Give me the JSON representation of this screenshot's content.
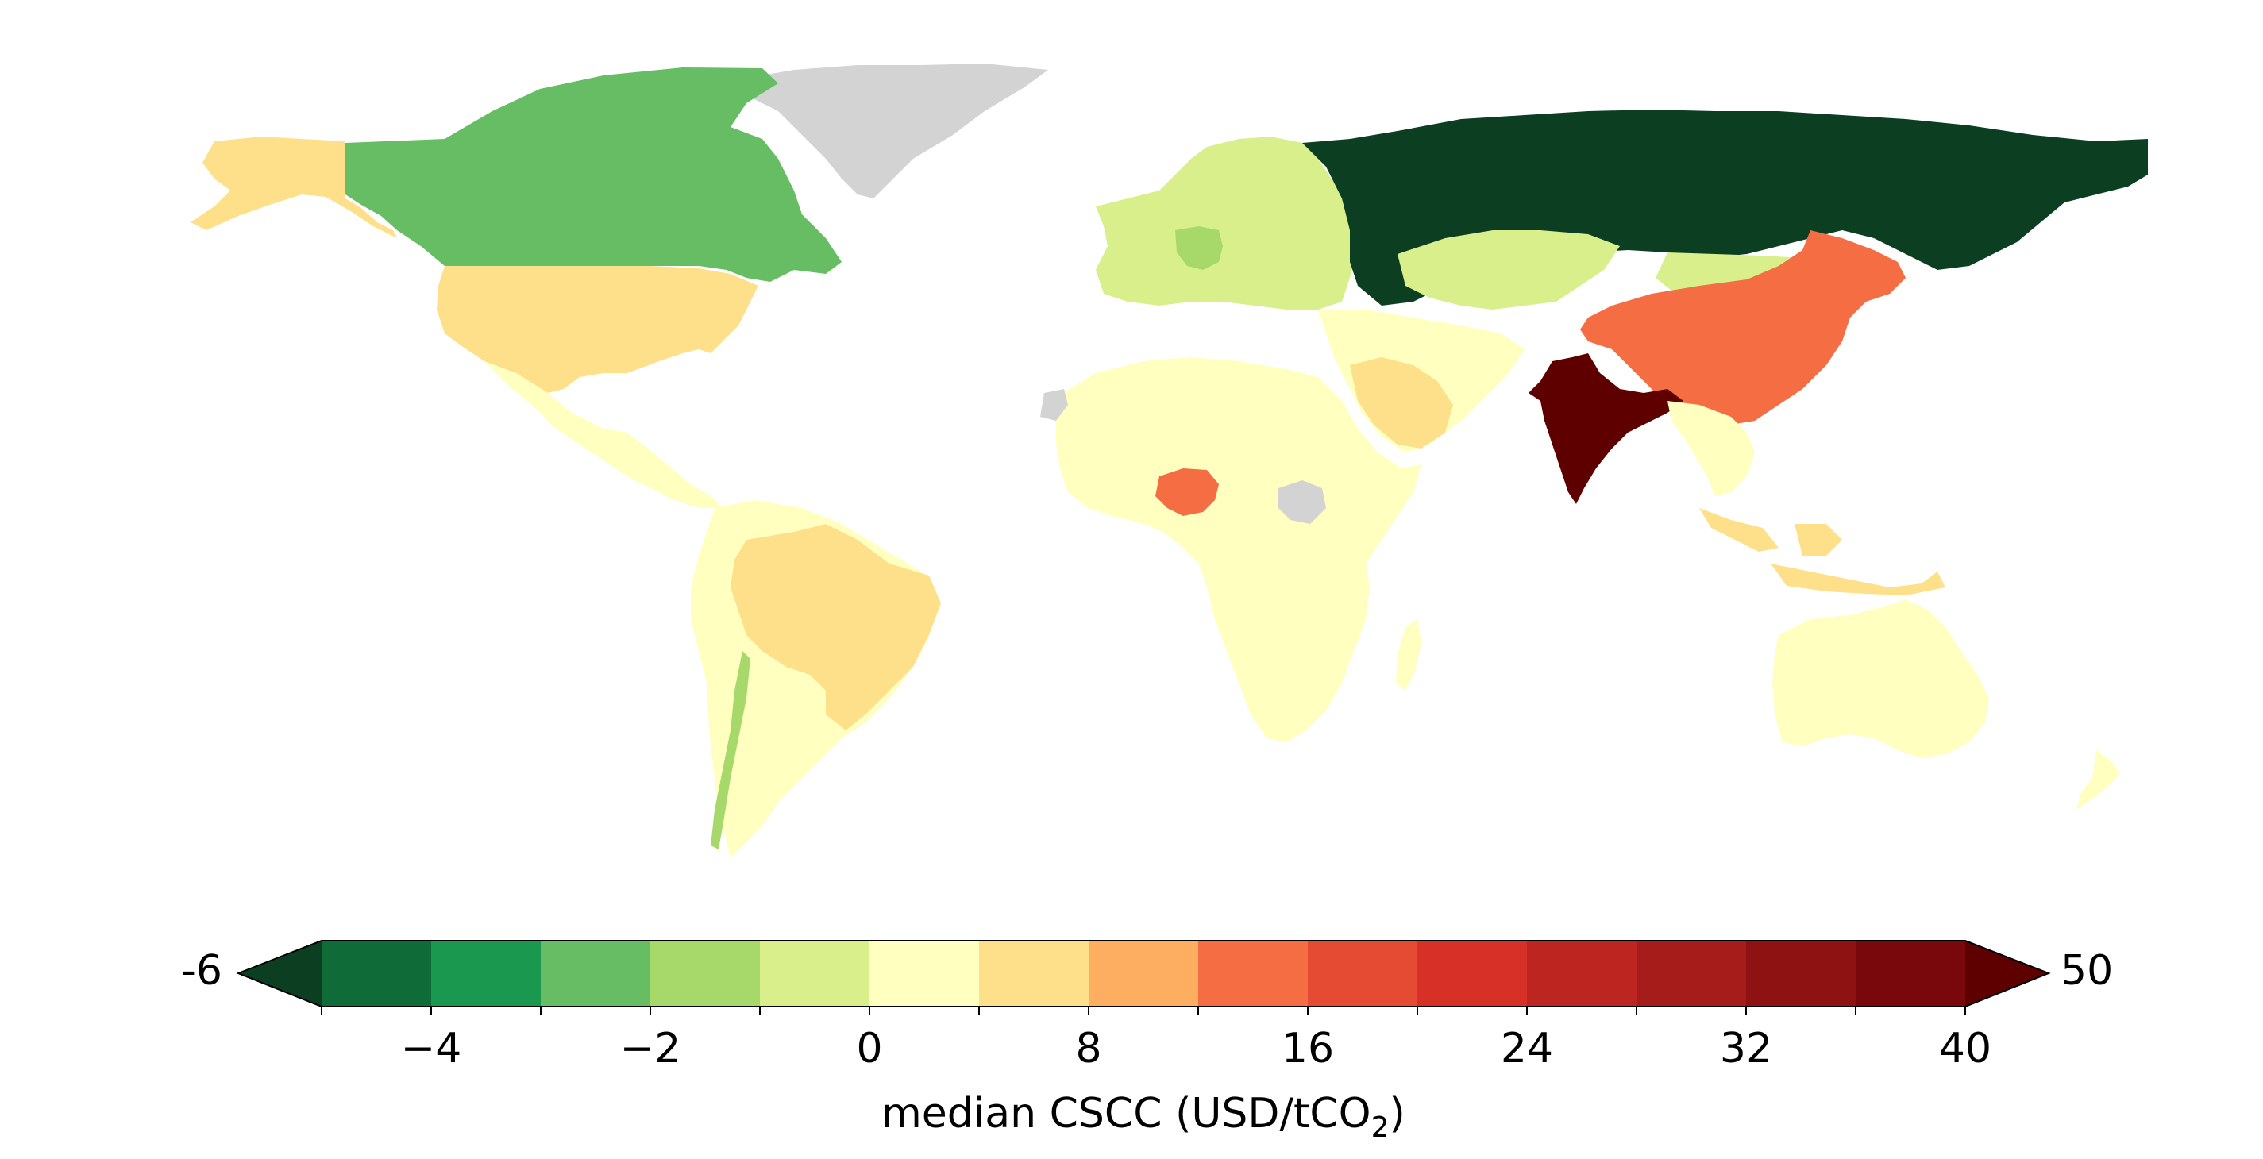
{
  "map": {
    "colors": {
      "no_data": "#d3d3d3",
      "ocean": "#ffffff"
    },
    "regions": [
      {
        "name": "Russia",
        "color": "#0c3f22"
      },
      {
        "name": "India",
        "color": "#5f0000"
      },
      {
        "name": "China",
        "color": "#f46d43"
      },
      {
        "name": "Nigeria",
        "color": "#f46d43"
      },
      {
        "name": "United States",
        "color": "#fee08b"
      },
      {
        "name": "Alaska",
        "color": "#fee08b"
      },
      {
        "name": "Brazil",
        "color": "#fee08b"
      },
      {
        "name": "Saudi Arabia",
        "color": "#fee08b"
      },
      {
        "name": "Indonesia",
        "color": "#fee08b"
      },
      {
        "name": "Canada",
        "color": "#66bd63"
      },
      {
        "name": "Germany",
        "color": "#a6d96a"
      },
      {
        "name": "Kazakhstan",
        "color": "#d9ef8b"
      },
      {
        "name": "Europe",
        "color": "#d9ef8b"
      },
      {
        "name": "Greenland",
        "color": "#d3d3d3"
      },
      {
        "name": "Africa",
        "color": "#ffffbf"
      },
      {
        "name": "Australia",
        "color": "#ffffbf"
      }
    ]
  },
  "colorbar": {
    "label": "median CSCC (USD/tCO",
    "label_sub": "2",
    "label_close": ")",
    "min_extension_label": "-6",
    "max_extension_label": "50",
    "ticks": [
      {
        "value": -4,
        "label": "−4"
      },
      {
        "value": -2,
        "label": "−2"
      },
      {
        "value": 0,
        "label": "0"
      },
      {
        "value": 8,
        "label": "8"
      },
      {
        "value": 16,
        "label": "16"
      },
      {
        "value": 24,
        "label": "24"
      },
      {
        "value": 32,
        "label": "32"
      },
      {
        "value": 40,
        "label": "40"
      }
    ],
    "under_color": "#0c3f22",
    "over_color": "#5f0000",
    "colors": [
      "#0f6b38",
      "#1a9850",
      "#66bd63",
      "#a6d96a",
      "#d9ef8b",
      "#ffffbf",
      "#fee08b",
      "#fdae61",
      "#f46d43",
      "#e54b33",
      "#d73027",
      "#bd2620",
      "#a51c1a",
      "#8f1213",
      "#78080c"
    ]
  }
}
